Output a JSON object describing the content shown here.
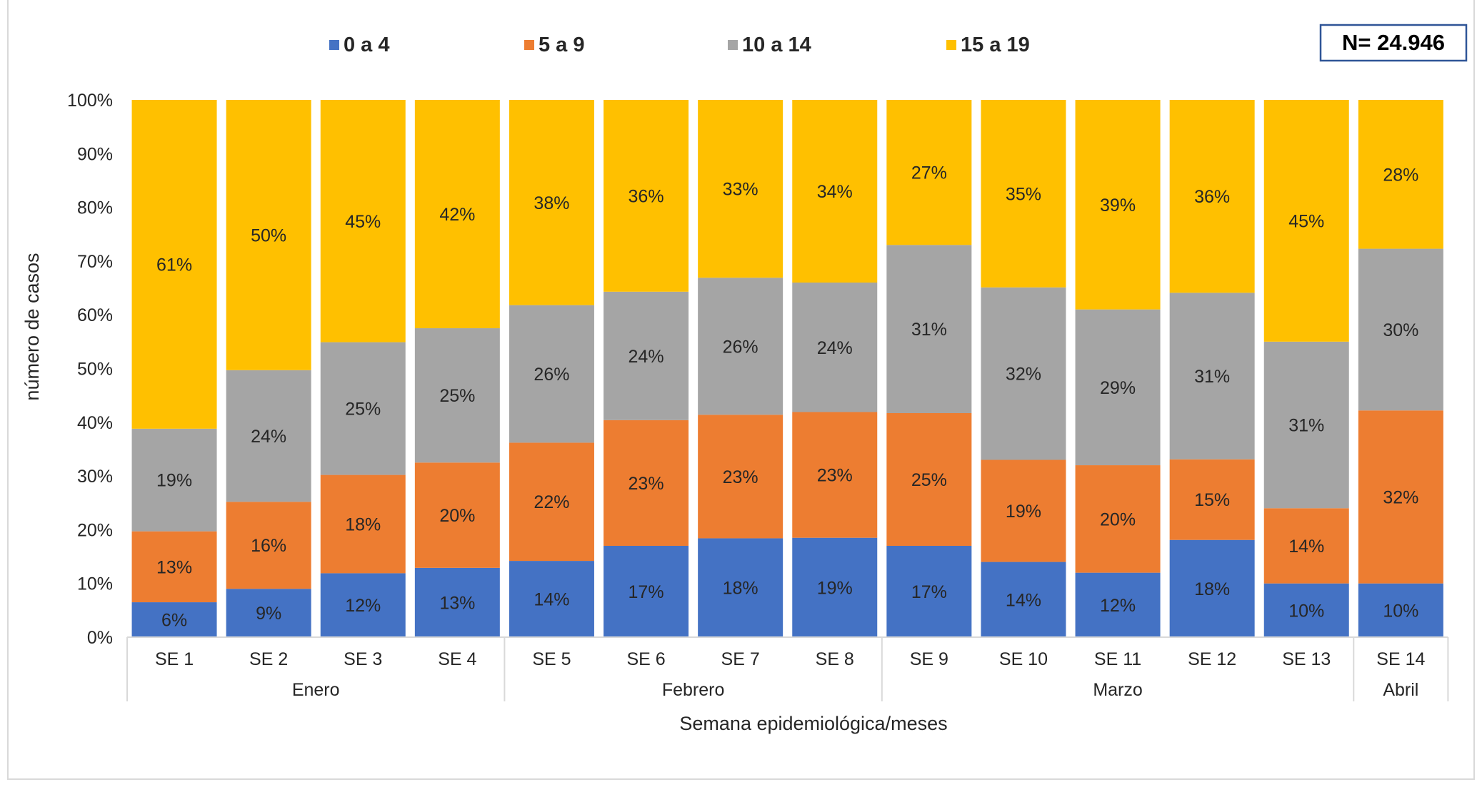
{
  "n_box": {
    "label": "N= 24.946",
    "border_color": "#2f5597"
  },
  "chart_data": {
    "type": "bar",
    "stacked": "percent",
    "categories": [
      "SE 1",
      "SE 2",
      "SE 3",
      "SE 4",
      "SE 5",
      "SE 6",
      "SE 7",
      "SE 8",
      "SE 9",
      "SE 10",
      "SE 11",
      "SE 12",
      "SE 13",
      "SE 14"
    ],
    "groups": [
      {
        "label": "Enero",
        "from": 0,
        "to": 3
      },
      {
        "label": "Febrero",
        "from": 4,
        "to": 7
      },
      {
        "label": "Marzo",
        "from": 8,
        "to": 12
      },
      {
        "label": "Abril",
        "from": 13,
        "to": 13
      }
    ],
    "series": [
      {
        "name": "0 a 4",
        "color": "#4472c4",
        "values": [
          6.5,
          9,
          11.9,
          12.9,
          14.2,
          17,
          18.4,
          18.5,
          17,
          14,
          12,
          18.1,
          10,
          10
        ],
        "labels": [
          "6%",
          "9%",
          "12%",
          "13%",
          "14%",
          "17%",
          "18%",
          "19%",
          "17%",
          "14%",
          "12%",
          "18%",
          "10%",
          "10%"
        ]
      },
      {
        "name": "5 a 9",
        "color": "#ed7d31",
        "values": [
          13.2,
          16.2,
          18.3,
          19.6,
          22,
          23.4,
          23,
          23.4,
          24.7,
          19,
          20,
          15,
          14,
          32.2
        ],
        "labels": [
          "13%",
          "16%",
          "18%",
          "20%",
          "22%",
          "23%",
          "23%",
          "23%",
          "25%",
          "19%",
          "20%",
          "15%",
          "14%",
          "32%"
        ]
      },
      {
        "name": "10 a 14",
        "color": "#a5a5a5",
        "values": [
          19.1,
          24.5,
          24.7,
          25,
          25.6,
          23.9,
          25.5,
          24.1,
          31.3,
          32.1,
          29,
          31,
          31,
          30.1
        ],
        "labels": [
          "19%",
          "24%",
          "25%",
          "25%",
          "26%",
          "24%",
          "26%",
          "24%",
          "31%",
          "32%",
          "29%",
          "31%",
          "31%",
          "30%"
        ]
      },
      {
        "name": "15 a 19",
        "color": "#ffc000",
        "values": [
          61.2,
          50.3,
          45.1,
          42.5,
          38.2,
          35.7,
          33.1,
          34,
          27,
          34.9,
          39,
          35.9,
          45,
          27.7
        ],
        "labels": [
          "61%",
          "50%",
          "45%",
          "42%",
          "38%",
          "36%",
          "33%",
          "34%",
          "27%",
          "35%",
          "39%",
          "36%",
          "45%",
          "28%"
        ]
      }
    ],
    "ylim": [
      0,
      100
    ],
    "yticks": [
      "0%",
      "10%",
      "20%",
      "30%",
      "40%",
      "50%",
      "60%",
      "70%",
      "80%",
      "90%",
      "100%"
    ],
    "ylabel": "número de casos",
    "xlabel": "Semana epidemiológica/meses",
    "legend_position": "top",
    "grid": false
  }
}
